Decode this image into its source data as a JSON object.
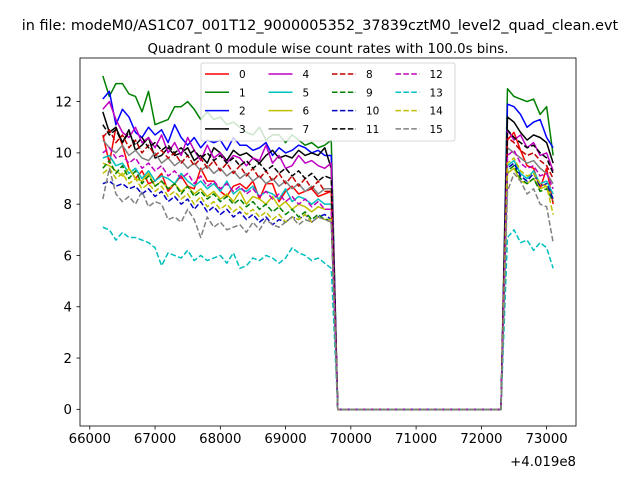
{
  "chart_data": {
    "type": "line",
    "suptitle": "in file: modeM0/AS1C07_001T12_9000005352_37839cztM0_level2_quad_clean.evt",
    "title": "Quadrant 0 module wise count rates with 100.0s bins.",
    "xlabel": "",
    "ylabel": "",
    "offset_label": "+4.019e8",
    "xlim": [
      65850,
      73450
    ],
    "ylim": [
      -0.65,
      13.7
    ],
    "xticks": [
      66000,
      67000,
      68000,
      69000,
      70000,
      71000,
      72000,
      73000
    ],
    "xtick_labels": [
      "66000",
      "67000",
      "68000",
      "69000",
      "70000",
      "71000",
      "72000",
      "73000"
    ],
    "yticks": [
      0,
      2,
      4,
      6,
      8,
      10,
      12
    ],
    "ytick_labels": [
      "0",
      "2",
      "4",
      "6",
      "8",
      "10",
      "12"
    ],
    "grid": false,
    "legend_position": "upper center",
    "legend_columns": 4,
    "x": [
      66200,
      66300,
      66400,
      66500,
      66600,
      66700,
      66800,
      66900,
      67000,
      67100,
      67200,
      67300,
      67400,
      67500,
      67600,
      67700,
      67800,
      67900,
      68000,
      68100,
      68200,
      68300,
      68400,
      68500,
      68600,
      68700,
      68800,
      68900,
      69000,
      69100,
      69200,
      69300,
      69400,
      69500,
      69600,
      69700,
      69800,
      69900,
      70000,
      70100,
      70200,
      70300,
      70400,
      70500,
      70600,
      70700,
      70800,
      70900,
      71000,
      71100,
      71200,
      71300,
      71400,
      71500,
      71600,
      71700,
      71800,
      71900,
      72000,
      72100,
      72200,
      72300,
      72400,
      72500,
      72600,
      72700,
      72800,
      72900,
      73000,
      73100
    ],
    "series": [
      {
        "name": "0",
        "color": "#ff0000",
        "dash": "solid",
        "values": [
          10.7,
          9.6,
          11.0,
          10.3,
          9.4,
          9.0,
          9.3,
          8.8,
          8.9,
          9.2,
          8.5,
          8.8,
          9.1,
          8.7,
          8.6,
          9.4,
          8.9,
          8.9,
          8.5,
          8.3,
          8.7,
          8.8,
          8.6,
          8.9,
          8.2,
          8.8,
          8.8,
          8.1,
          8.5,
          8.7,
          8.4,
          8.5,
          8.6,
          8.3,
          8.4,
          8.5,
          0,
          0,
          0,
          0,
          0,
          0,
          0,
          0,
          0,
          0,
          0,
          0,
          0,
          0,
          0,
          0,
          0,
          0,
          0,
          0,
          0,
          0,
          0,
          0,
          0,
          0,
          10.5,
          10.8,
          10.1,
          9.5,
          9.4,
          8.6,
          9.4,
          8.0
        ]
      },
      {
        "name": "1",
        "color": "#008000",
        "dash": "solid",
        "values": [
          13.0,
          12.2,
          12.7,
          12.7,
          12.3,
          12.2,
          11.6,
          12.4,
          11.1,
          11.2,
          11.3,
          11.8,
          11.8,
          12.0,
          11.7,
          11.3,
          11.6,
          11.3,
          11.4,
          11.1,
          11.2,
          11.0,
          10.8,
          10.7,
          11.0,
          10.5,
          10.7,
          10.7,
          10.4,
          10.7,
          10.5,
          10.3,
          10.4,
          10.2,
          10.3,
          10.5,
          0,
          0,
          0,
          0,
          0,
          0,
          0,
          0,
          0,
          0,
          0,
          0,
          0,
          0,
          0,
          0,
          0,
          0,
          0,
          0,
          0,
          0,
          0,
          0,
          0,
          0,
          12.5,
          12.2,
          12.1,
          12.0,
          12.1,
          11.5,
          11.8,
          9.9
        ]
      },
      {
        "name": "2",
        "color": "#0000ff",
        "dash": "solid",
        "values": [
          12.1,
          12.4,
          11.1,
          11.7,
          11.4,
          10.8,
          10.6,
          11.0,
          10.7,
          10.9,
          10.4,
          11.1,
          10.6,
          10.3,
          10.6,
          10.2,
          10.5,
          10.4,
          10.5,
          10.1,
          10.6,
          10.3,
          10.3,
          10.1,
          10.2,
          10.4,
          9.9,
          10.2,
          10.0,
          10.1,
          10.3,
          10.2,
          10.0,
          10.1,
          9.9,
          9.9,
          0,
          0,
          0,
          0,
          0,
          0,
          0,
          0,
          0,
          0,
          0,
          0,
          0,
          0,
          0,
          0,
          0,
          0,
          0,
          0,
          0,
          0,
          0,
          0,
          0,
          0,
          11.9,
          11.8,
          11.5,
          11.0,
          11.2,
          11.3,
          10.6,
          10.2
        ]
      },
      {
        "name": "3",
        "color": "#000000",
        "dash": "solid",
        "values": [
          11.6,
          10.8,
          11.0,
          10.4,
          10.9,
          10.1,
          10.3,
          10.6,
          9.8,
          9.9,
          10.2,
          9.9,
          10.0,
          10.2,
          9.7,
          9.9,
          9.6,
          10.2,
          10.0,
          9.7,
          10.1,
          9.9,
          10.0,
          9.8,
          9.6,
          9.9,
          10.1,
          9.8,
          9.9,
          9.8,
          10.1,
          9.9,
          10.0,
          9.9,
          10.2,
          9.4,
          0,
          0,
          0,
          0,
          0,
          0,
          0,
          0,
          0,
          0,
          0,
          0,
          0,
          0,
          0,
          0,
          0,
          0,
          0,
          0,
          0,
          0,
          0,
          0,
          0,
          0,
          11.4,
          11.2,
          10.8,
          10.5,
          10.7,
          10.6,
          10.4,
          9.6
        ]
      },
      {
        "name": "4",
        "color": "#c000c0",
        "dash": "solid",
        "values": [
          11.7,
          12.0,
          11.3,
          10.8,
          10.6,
          11.0,
          10.4,
          10.6,
          10.2,
          10.7,
          10.0,
          10.4,
          9.9,
          10.6,
          10.1,
          9.7,
          10.3,
          9.8,
          10.0,
          9.6,
          9.9,
          9.8,
          9.5,
          9.8,
          9.7,
          10.3,
          9.6,
          9.9,
          9.4,
          9.5,
          9.9,
          9.6,
          9.7,
          9.5,
          9.4,
          9.6,
          0,
          0,
          0,
          0,
          0,
          0,
          0,
          0,
          0,
          0,
          0,
          0,
          0,
          0,
          0,
          0,
          0,
          0,
          0,
          0,
          0,
          0,
          0,
          0,
          0,
          0,
          10.9,
          10.5,
          10.7,
          10.2,
          10.4,
          9.9,
          10.0,
          9.3
        ]
      },
      {
        "name": "5",
        "color": "#00bfbf",
        "dash": "solid",
        "values": [
          9.8,
          9.9,
          9.5,
          9.6,
          9.2,
          9.4,
          9.0,
          9.3,
          8.9,
          9.1,
          9.0,
          8.8,
          9.2,
          8.9,
          8.7,
          8.9,
          8.6,
          8.8,
          8.5,
          8.9,
          8.4,
          8.6,
          8.5,
          8.7,
          8.3,
          8.5,
          8.4,
          8.2,
          8.6,
          8.1,
          8.3,
          8.2,
          8.0,
          8.2,
          8.0,
          8.0,
          0,
          0,
          0,
          0,
          0,
          0,
          0,
          0,
          0,
          0,
          0,
          0,
          0,
          0,
          0,
          0,
          0,
          0,
          0,
          0,
          0,
          0,
          0,
          0,
          0,
          0,
          9.5,
          9.7,
          9.2,
          9.0,
          9.3,
          8.8,
          8.9,
          8.4
        ]
      },
      {
        "name": "6",
        "color": "#bfbf00",
        "dash": "solid",
        "values": [
          9.6,
          9.5,
          9.3,
          9.1,
          9.4,
          9.0,
          8.9,
          9.2,
          8.7,
          8.9,
          8.6,
          8.8,
          8.5,
          8.7,
          8.4,
          8.6,
          8.3,
          8.5,
          8.2,
          8.4,
          8.1,
          8.5,
          8.0,
          8.3,
          8.2,
          8.0,
          8.3,
          7.9,
          8.1,
          7.8,
          8.0,
          7.9,
          7.7,
          7.9,
          7.8,
          7.8,
          0,
          0,
          0,
          0,
          0,
          0,
          0,
          0,
          0,
          0,
          0,
          0,
          0,
          0,
          0,
          0,
          0,
          0,
          0,
          0,
          0,
          0,
          0,
          0,
          0,
          0,
          9.2,
          9.4,
          8.9,
          8.8,
          9.0,
          8.6,
          8.7,
          8.2
        ]
      },
      {
        "name": "7",
        "color": "#808080",
        "dash": "solid",
        "values": [
          10.5,
          10.2,
          10.0,
          10.3,
          9.9,
          10.1,
          9.8,
          9.7,
          10.0,
          9.6,
          9.8,
          9.5,
          9.7,
          9.4,
          9.6,
          9.3,
          9.5,
          9.2,
          9.4,
          9.1,
          9.3,
          9.0,
          9.2,
          8.9,
          9.1,
          8.8,
          9.0,
          8.7,
          8.9,
          8.6,
          8.8,
          8.5,
          8.7,
          8.4,
          8.6,
          8.6,
          0,
          0,
          0,
          0,
          0,
          0,
          0,
          0,
          0,
          0,
          0,
          0,
          0,
          0,
          0,
          0,
          0,
          0,
          0,
          0,
          0,
          0,
          0,
          0,
          0,
          0,
          10.2,
          10.0,
          9.8,
          9.6,
          9.7,
          9.4,
          9.2,
          8.8
        ]
      },
      {
        "name": "8",
        "color": "#c00000",
        "dash": "dashed",
        "values": [
          10.6,
          10.9,
          10.4,
          10.7,
          10.2,
          10.5,
          10.0,
          10.3,
          9.9,
          10.1,
          9.8,
          10.0,
          9.6,
          9.9,
          9.5,
          9.8,
          9.4,
          9.7,
          9.3,
          9.6,
          9.2,
          9.5,
          9.1,
          9.4,
          9.0,
          9.3,
          8.9,
          9.2,
          8.8,
          9.1,
          8.7,
          9.0,
          8.6,
          8.9,
          8.5,
          8.5,
          0,
          0,
          0,
          0,
          0,
          0,
          0,
          0,
          0,
          0,
          0,
          0,
          0,
          0,
          0,
          0,
          0,
          0,
          0,
          0,
          0,
          0,
          0,
          0,
          0,
          0,
          10.6,
          10.4,
          10.1,
          9.9,
          10.0,
          9.7,
          9.5,
          9.0
        ]
      },
      {
        "name": "9",
        "color": "#008000",
        "dash": "dashed",
        "values": [
          9.4,
          9.7,
          9.2,
          9.5,
          9.0,
          9.3,
          8.8,
          9.1,
          8.7,
          8.9,
          8.6,
          8.8,
          8.4,
          8.7,
          8.3,
          8.5,
          8.2,
          8.4,
          8.1,
          8.3,
          8.0,
          8.2,
          7.9,
          8.1,
          7.8,
          8.0,
          7.7,
          7.9,
          7.6,
          7.8,
          7.5,
          7.7,
          7.4,
          7.6,
          7.4,
          7.4,
          0,
          0,
          0,
          0,
          0,
          0,
          0,
          0,
          0,
          0,
          0,
          0,
          0,
          0,
          0,
          0,
          0,
          0,
          0,
          0,
          0,
          0,
          0,
          0,
          0,
          0,
          9.3,
          9.5,
          9.0,
          8.8,
          9.0,
          8.5,
          8.6,
          8.1
        ]
      },
      {
        "name": "10",
        "color": "#0000c0",
        "dash": "dashed",
        "values": [
          8.8,
          8.9,
          8.7,
          8.8,
          8.6,
          8.7,
          8.4,
          8.6,
          8.3,
          8.5,
          8.1,
          8.3,
          8.0,
          8.2,
          7.8,
          8.1,
          7.7,
          7.9,
          7.6,
          7.8,
          7.5,
          7.7,
          7.4,
          7.6,
          7.3,
          7.5,
          7.2,
          7.4,
          7.3,
          7.5,
          7.4,
          7.6,
          7.3,
          7.5,
          7.6,
          7.4,
          0,
          0,
          0,
          0,
          0,
          0,
          0,
          0,
          0,
          0,
          0,
          0,
          0,
          0,
          0,
          0,
          0,
          0,
          0,
          0,
          0,
          0,
          0,
          0,
          0,
          0,
          9.4,
          9.6,
          9.1,
          8.9,
          9.2,
          8.7,
          8.8,
          8.2
        ]
      },
      {
        "name": "11",
        "color": "#000000",
        "dash": "dashed",
        "values": [
          11.1,
          10.7,
          10.9,
          10.4,
          10.8,
          10.3,
          10.6,
          10.2,
          10.4,
          10.1,
          10.3,
          10.0,
          10.2,
          9.9,
          10.1,
          9.8,
          10.0,
          9.7,
          9.9,
          9.6,
          9.8,
          9.5,
          9.7,
          9.4,
          9.6,
          9.3,
          9.5,
          9.2,
          9.4,
          9.1,
          9.3,
          9.0,
          9.2,
          8.9,
          9.1,
          9.0,
          0,
          0,
          0,
          0,
          0,
          0,
          0,
          0,
          0,
          0,
          0,
          0,
          0,
          0,
          0,
          0,
          0,
          0,
          0,
          0,
          0,
          0,
          0,
          0,
          0,
          0,
          10.9,
          10.6,
          10.4,
          10.2,
          10.3,
          10.0,
          9.8,
          9.2
        ]
      },
      {
        "name": "12",
        "color": "#c000c0",
        "dash": "dashed",
        "values": [
          10.0,
          10.2,
          9.8,
          9.9,
          9.6,
          9.8,
          9.4,
          9.6,
          9.3,
          9.5,
          9.1,
          9.3,
          9.0,
          9.2,
          8.8,
          9.1,
          8.7,
          8.9,
          8.6,
          8.8,
          8.5,
          8.7,
          8.4,
          8.6,
          8.3,
          8.5,
          8.2,
          8.4,
          8.1,
          8.3,
          8.0,
          8.2,
          7.9,
          8.1,
          7.8,
          7.8,
          0,
          0,
          0,
          0,
          0,
          0,
          0,
          0,
          0,
          0,
          0,
          0,
          0,
          0,
          0,
          0,
          0,
          0,
          0,
          0,
          0,
          0,
          0,
          0,
          0,
          0,
          9.9,
          10.1,
          9.6,
          9.4,
          9.5,
          9.1,
          9.2,
          8.6
        ]
      },
      {
        "name": "13",
        "color": "#00bfbf",
        "dash": "dashed",
        "values": [
          7.1,
          7.0,
          6.6,
          6.9,
          6.7,
          6.7,
          6.6,
          6.5,
          6.3,
          5.6,
          6.1,
          6.0,
          5.9,
          6.2,
          5.8,
          6.0,
          5.8,
          5.9,
          6.0,
          5.7,
          6.1,
          5.5,
          5.6,
          5.9,
          5.8,
          6.0,
          5.9,
          5.7,
          5.9,
          6.3,
          6.1,
          6.0,
          5.8,
          5.9,
          5.7,
          5.5,
          0,
          0,
          0,
          0,
          0,
          0,
          0,
          0,
          0,
          0,
          0,
          0,
          0,
          0,
          0,
          0,
          0,
          0,
          0,
          0,
          0,
          0,
          0,
          0,
          0,
          0,
          6.7,
          7.0,
          6.5,
          6.6,
          6.2,
          6.5,
          6.3,
          5.5
        ]
      },
      {
        "name": "14",
        "color": "#bfbf00",
        "dash": "dashed",
        "values": [
          9.2,
          9.4,
          9.0,
          9.2,
          8.8,
          9.0,
          8.6,
          8.8,
          8.5,
          8.7,
          8.3,
          8.5,
          8.2,
          8.4,
          8.0,
          8.3,
          7.9,
          8.1,
          7.8,
          8.0,
          7.7,
          7.9,
          7.6,
          7.8,
          7.5,
          7.7,
          7.4,
          7.6,
          7.3,
          7.5,
          7.4,
          7.6,
          7.3,
          7.5,
          7.4,
          7.4,
          0,
          0,
          0,
          0,
          0,
          0,
          0,
          0,
          0,
          0,
          0,
          0,
          0,
          0,
          0,
          0,
          0,
          0,
          0,
          0,
          0,
          0,
          0,
          0,
          0,
          0,
          9.6,
          9.8,
          9.3,
          9.1,
          9.2,
          8.8,
          8.7,
          7.6
        ]
      },
      {
        "name": "15",
        "color": "#808080",
        "dash": "dashed",
        "values": [
          8.2,
          9.4,
          8.4,
          8.1,
          8.3,
          8.0,
          8.5,
          7.9,
          8.1,
          8.0,
          7.4,
          7.5,
          7.3,
          7.8,
          7.4,
          6.7,
          7.5,
          7.1,
          7.3,
          7.0,
          7.1,
          7.2,
          6.9,
          7.3,
          7.0,
          7.4,
          7.2,
          7.1,
          7.3,
          7.5,
          7.2,
          7.4,
          7.3,
          7.5,
          7.4,
          7.3,
          0,
          0,
          0,
          0,
          0,
          0,
          0,
          0,
          0,
          0,
          0,
          0,
          0,
          0,
          0,
          0,
          0,
          0,
          0,
          0,
          0,
          0,
          0,
          0,
          0,
          0,
          8.5,
          9.2,
          8.9,
          8.4,
          8.6,
          8.0,
          7.9,
          6.5
        ]
      }
    ]
  }
}
